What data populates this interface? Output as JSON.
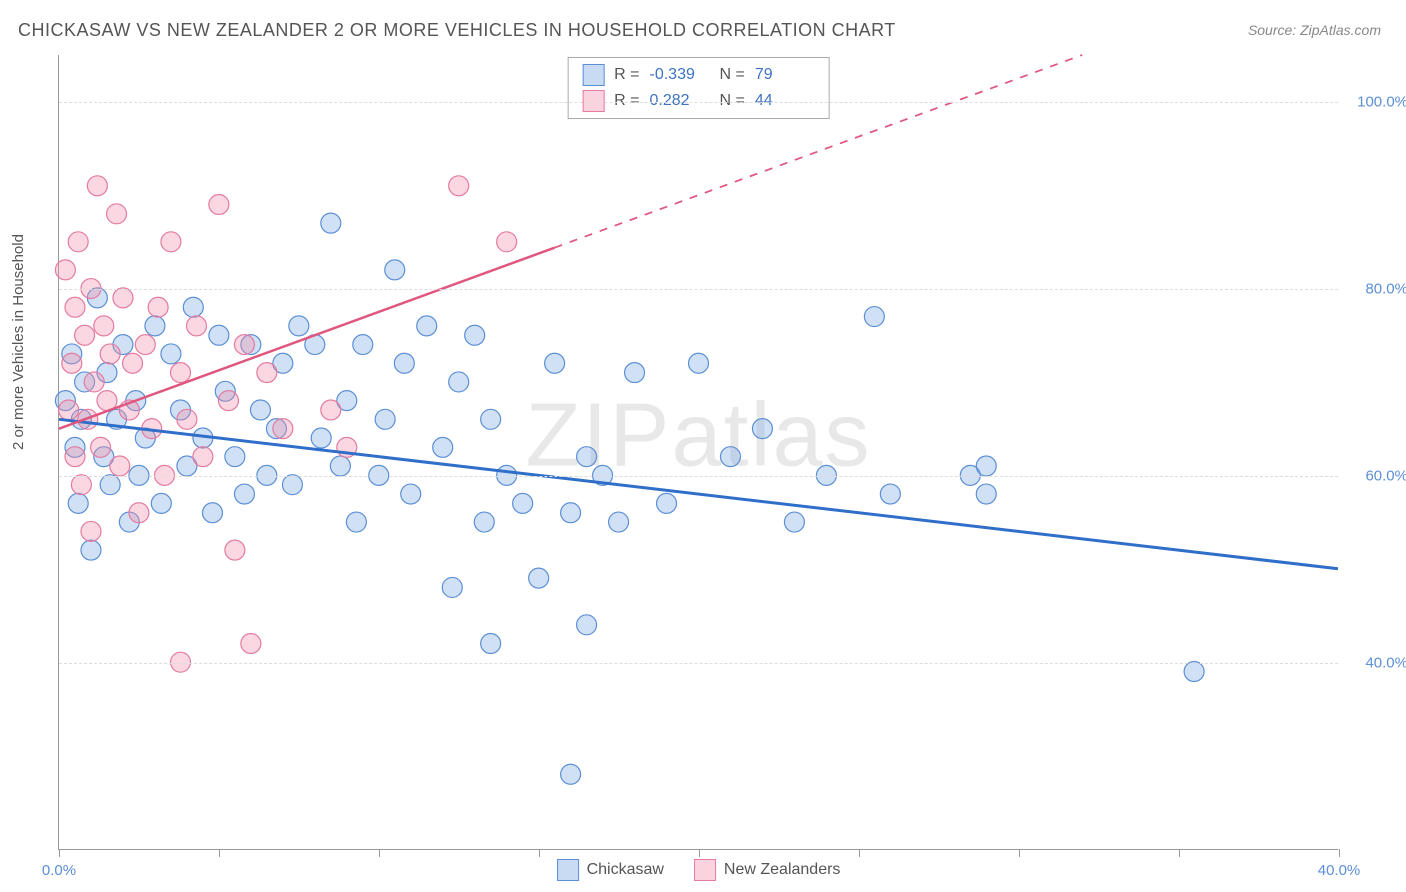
{
  "title": "CHICKASAW VS NEW ZEALANDER 2 OR MORE VEHICLES IN HOUSEHOLD CORRELATION CHART",
  "source": "Source: ZipAtlas.com",
  "watermark": "ZIPatlas",
  "ylabel": "2 or more Vehicles in Household",
  "chart": {
    "type": "scatter",
    "xlim": [
      0,
      40
    ],
    "ylim": [
      20,
      105
    ],
    "xticks": [
      0,
      5,
      10,
      15,
      20,
      25,
      30,
      35,
      40
    ],
    "xtick_labels_shown": {
      "0": "0.0%",
      "40": "40.0%"
    },
    "yticks": [
      40,
      60,
      80,
      100
    ],
    "ytick_labels": [
      "40.0%",
      "60.0%",
      "80.0%",
      "100.0%"
    ],
    "background_color": "#ffffff",
    "grid_color": "#dddddd",
    "axis_color": "#999999",
    "text_color": "#555555",
    "tick_label_color": "#5b8fd6",
    "series": [
      {
        "name": "Chickasaw",
        "color_fill": "rgba(120,165,225,0.35)",
        "color_stroke": "#5b8fd6",
        "marker_radius": 10,
        "R": -0.339,
        "N": 79,
        "trend": {
          "x1": 0,
          "y1": 66,
          "x2": 40,
          "y2": 50,
          "solid_to_x": 40,
          "color": "#2f6fc9",
          "width": 3
        },
        "points": [
          [
            0.2,
            68
          ],
          [
            0.4,
            73
          ],
          [
            0.5,
            63
          ],
          [
            0.6,
            57
          ],
          [
            0.7,
            66
          ],
          [
            0.8,
            70
          ],
          [
            1.0,
            52
          ],
          [
            1.2,
            79
          ],
          [
            1.4,
            62
          ],
          [
            1.5,
            71
          ],
          [
            1.6,
            59
          ],
          [
            1.8,
            66
          ],
          [
            2.0,
            74
          ],
          [
            2.2,
            55
          ],
          [
            2.4,
            68
          ],
          [
            2.5,
            60
          ],
          [
            2.7,
            64
          ],
          [
            3.0,
            76
          ],
          [
            3.2,
            57
          ],
          [
            3.5,
            73
          ],
          [
            3.8,
            67
          ],
          [
            4.0,
            61
          ],
          [
            4.2,
            78
          ],
          [
            4.5,
            64
          ],
          [
            4.8,
            56
          ],
          [
            5.0,
            75
          ],
          [
            5.2,
            69
          ],
          [
            5.5,
            62
          ],
          [
            5.8,
            58
          ],
          [
            6.0,
            74
          ],
          [
            6.3,
            67
          ],
          [
            6.5,
            60
          ],
          [
            6.8,
            65
          ],
          [
            7.0,
            72
          ],
          [
            7.3,
            59
          ],
          [
            7.5,
            76
          ],
          [
            8.0,
            74
          ],
          [
            8.2,
            64
          ],
          [
            8.5,
            87
          ],
          [
            8.8,
            61
          ],
          [
            9.0,
            68
          ],
          [
            9.3,
            55
          ],
          [
            9.5,
            74
          ],
          [
            10.0,
            60
          ],
          [
            10.2,
            66
          ],
          [
            10.5,
            82
          ],
          [
            10.8,
            72
          ],
          [
            11.0,
            58
          ],
          [
            11.5,
            76
          ],
          [
            12.0,
            63
          ],
          [
            12.3,
            48
          ],
          [
            12.5,
            70
          ],
          [
            13.0,
            75
          ],
          [
            13.3,
            55
          ],
          [
            13.5,
            66
          ],
          [
            13.5,
            42
          ],
          [
            14.0,
            60
          ],
          [
            14.5,
            57
          ],
          [
            15.0,
            49
          ],
          [
            15.5,
            72
          ],
          [
            16.0,
            56
          ],
          [
            16.0,
            28
          ],
          [
            16.5,
            62
          ],
          [
            16.5,
            44
          ],
          [
            17.0,
            60
          ],
          [
            17.5,
            55
          ],
          [
            18.0,
            71
          ],
          [
            19.0,
            57
          ],
          [
            20.0,
            72
          ],
          [
            21.0,
            62
          ],
          [
            22.0,
            65
          ],
          [
            23.0,
            55
          ],
          [
            24.0,
            60
          ],
          [
            25.5,
            77
          ],
          [
            26.0,
            58
          ],
          [
            28.5,
            60
          ],
          [
            29.0,
            58
          ],
          [
            29.0,
            61
          ],
          [
            35.5,
            39
          ]
        ]
      },
      {
        "name": "New Zealanders",
        "color_fill": "rgba(240,140,170,0.35)",
        "color_stroke": "#e57aa0",
        "marker_radius": 10,
        "R": 0.282,
        "N": 44,
        "trend": {
          "x1": 0,
          "y1": 65,
          "x2": 32,
          "y2": 105,
          "solid_to_x": 15.5,
          "color": "#e0567f",
          "width": 2.5
        },
        "points": [
          [
            0.2,
            82
          ],
          [
            0.3,
            67
          ],
          [
            0.4,
            72
          ],
          [
            0.5,
            78
          ],
          [
            0.5,
            62
          ],
          [
            0.6,
            85
          ],
          [
            0.7,
            59
          ],
          [
            0.8,
            75
          ],
          [
            0.9,
            66
          ],
          [
            1.0,
            80
          ],
          [
            1.0,
            54
          ],
          [
            1.1,
            70
          ],
          [
            1.2,
            91
          ],
          [
            1.3,
            63
          ],
          [
            1.4,
            76
          ],
          [
            1.5,
            68
          ],
          [
            1.6,
            73
          ],
          [
            1.8,
            88
          ],
          [
            1.9,
            61
          ],
          [
            2.0,
            79
          ],
          [
            2.2,
            67
          ],
          [
            2.3,
            72
          ],
          [
            2.5,
            56
          ],
          [
            2.7,
            74
          ],
          [
            2.9,
            65
          ],
          [
            3.1,
            78
          ],
          [
            3.3,
            60
          ],
          [
            3.5,
            85
          ],
          [
            3.8,
            71
          ],
          [
            3.8,
            40
          ],
          [
            4.0,
            66
          ],
          [
            4.3,
            76
          ],
          [
            4.5,
            62
          ],
          [
            5.0,
            89
          ],
          [
            5.3,
            68
          ],
          [
            5.8,
            74
          ],
          [
            5.5,
            52
          ],
          [
            6.0,
            42
          ],
          [
            6.5,
            71
          ],
          [
            7.0,
            65
          ],
          [
            8.5,
            67
          ],
          [
            9.0,
            63
          ],
          [
            12.5,
            91
          ],
          [
            14.0,
            85
          ]
        ]
      }
    ]
  },
  "legend_top": {
    "rows": [
      {
        "swatch": "blue",
        "R_label": "R =",
        "R": "-0.339",
        "N_label": "N =",
        "N": "79"
      },
      {
        "swatch": "pink",
        "R_label": "R =",
        "R": " 0.282",
        "N_label": "N =",
        "N": "44"
      }
    ]
  },
  "legend_bottom": {
    "items": [
      {
        "swatch": "blue",
        "label": "Chickasaw"
      },
      {
        "swatch": "pink",
        "label": "New Zealanders"
      }
    ]
  }
}
